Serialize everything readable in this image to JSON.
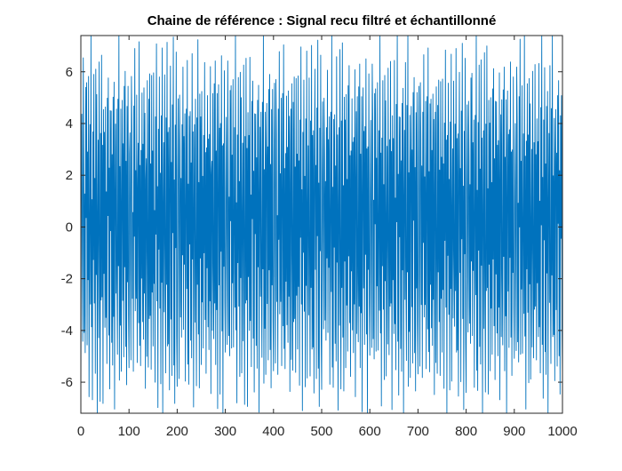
{
  "window": {
    "background": "#ffffff"
  },
  "chart_data": {
    "type": "line",
    "title": "Chaine de référence : Signal recu filtré et échantillonné",
    "xlabel": "",
    "ylabel": "",
    "xlim": [
      0,
      1000
    ],
    "ylim": [
      -7.2,
      7.4
    ],
    "x_ticks": [
      0,
      100,
      200,
      300,
      400,
      500,
      600,
      700,
      800,
      900,
      1000
    ],
    "x_tick_labels": [
      "0",
      "100",
      "200",
      "300",
      "400",
      "500",
      "600",
      "700",
      "800",
      "900",
      "1000"
    ],
    "y_ticks": [
      -6,
      -4,
      -2,
      0,
      2,
      4,
      6
    ],
    "y_tick_labels": [
      "-6",
      "-4",
      "-2",
      "0",
      "2",
      "4",
      "6"
    ],
    "grid": false,
    "legend": "none",
    "line_color": "#0072BD",
    "axes_color": "#262626",
    "series": [
      {
        "x_start": 0,
        "x_step": 1,
        "count": 1001,
        "values_description_note": "",
        "values": [
          -5.8,
          2.1,
          4.6,
          -1.2,
          -4.9,
          5.7,
          3.2,
          -3.6,
          1.4,
          -5.1,
          4.8,
          -0.6,
          6.3,
          -4.2,
          2.9,
          -2.4,
          5.1,
          -5.6,
          0.8,
          4.2,
          -3.1,
          7.4,
          -4.7,
          1.9,
          -6.2,
          3.8,
          -1.5,
          5.3,
          -3.9,
          2.6,
          -5.3,
          6.1,
          -2.2,
          4.4,
          -6.6,
          1.1,
          3.6,
          -4.4,
          5.9,
          -0.9,
          -5.9,
          4.1,
          -2.7,
          6.4,
          -3.3,
          2.2,
          -6.1,
          4.9,
          -1.8,
          3.3,
          -4.6,
          5.6,
          -2.9,
          1.6,
          -5.4,
          4.5,
          -0.4,
          6.6,
          -3.7,
          2.4,
          -6.5,
          3.9,
          -1.1,
          5.2,
          -4.1,
          2.8,
          -5.7,
          4.3,
          -2.5,
          6.2,
          -6.8,
          1.3,
          3.5,
          -3.4,
          5.4,
          -1.7,
          -4.8,
          4.7,
          -2.1,
          6.9,
          -5.2,
          2.7,
          -3.8,
          4.2,
          -6.3,
          1.8,
          5.5,
          -2.6,
          3.1,
          -5.5,
          4.6,
          -0.7,
          6.5,
          -4.5,
          2.3,
          -6.7,
          3.7,
          -1.4,
          5.8,
          -3.5
        ]
      }
    ]
  }
}
